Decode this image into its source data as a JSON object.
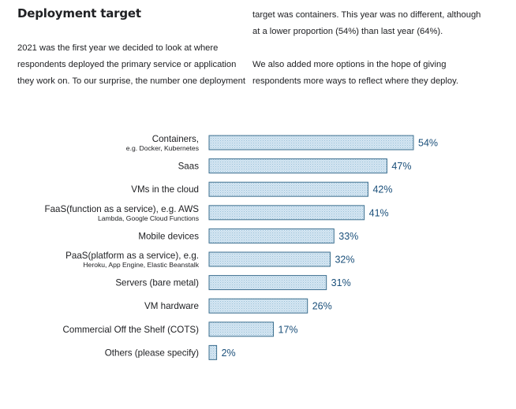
{
  "heading": "Deployment target",
  "intro_left": [
    "2021 was the first year we decided to look at where",
    "respondents deployed the primary service or application",
    "they work on. To our surprise, the number one deployment"
  ],
  "intro_right_1": [
    "target was containers. This year was no different, although",
    "at a lower proportion (54%) than last year (64%)."
  ],
  "intro_right_2": [
    "We also added more options in the hope of giving",
    "respondents more ways to reflect where they deploy."
  ],
  "colors": {
    "bar_fill": "#cfe3f0",
    "bar_stroke": "#3d6f8f",
    "value_text": "#1a4f7a"
  },
  "chart_data": {
    "type": "bar",
    "orientation": "horizontal",
    "title": "",
    "xlabel": "",
    "ylabel": "",
    "xlim": [
      0,
      54
    ],
    "grid": false,
    "legend": "none",
    "categories": [
      "Containers,",
      "Saas",
      "VMs in the cloud",
      "FaaS(function as a service), e.g. AWS",
      "Mobile devices",
      "PaaS(platform as a service), e.g.",
      "Servers (bare metal)",
      "VM hardware",
      "Commercial Off the Shelf (COTS)",
      "Others (please specify)"
    ],
    "category_sublabels": [
      "e.g. Docker, Kubernetes",
      "",
      "",
      "Lambda, Google Cloud Functions",
      "",
      "Heroku, App Engine, Elastic Beanstalk",
      "",
      "",
      "",
      ""
    ],
    "values": [
      54,
      47,
      42,
      41,
      33,
      32,
      31,
      26,
      17,
      2
    ],
    "value_labels": [
      "54%",
      "47%",
      "42%",
      "41%",
      "33%",
      "32%",
      "31%",
      "26%",
      "17%",
      "2%"
    ]
  }
}
